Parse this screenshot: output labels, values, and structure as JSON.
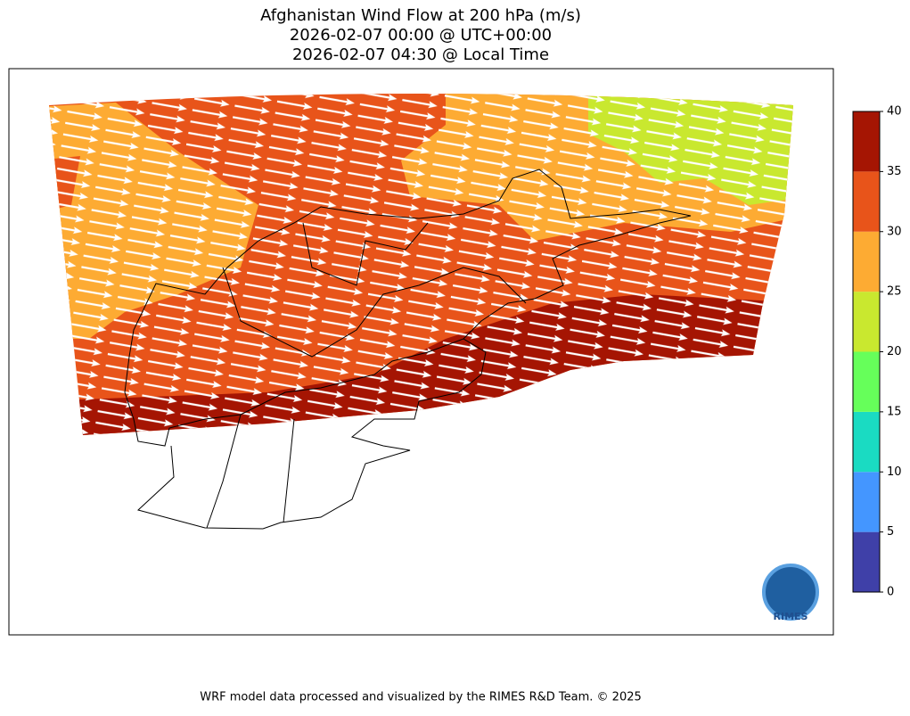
{
  "title": [
    "Afghanistan Wind Flow at 200 hPa (m/s)",
    "2026-02-07 00:00 @ UTC+00:00",
    "2026-02-07 04:30 @ Local Time"
  ],
  "colorbar": {
    "range": [
      0,
      40
    ],
    "ticks": [
      0,
      5,
      10,
      15,
      20,
      25,
      30,
      35,
      40
    ],
    "colors": [
      "#3f40a8",
      "#4496ff",
      "#1adbc2",
      "#66ff5a",
      "#c9e82f",
      "#fdab33",
      "#e8541a",
      "#a51503"
    ]
  },
  "logo_text": "RIMES",
  "footer": "WRF model data processed and visualized by the RIMES R&D Team. © 2025"
}
